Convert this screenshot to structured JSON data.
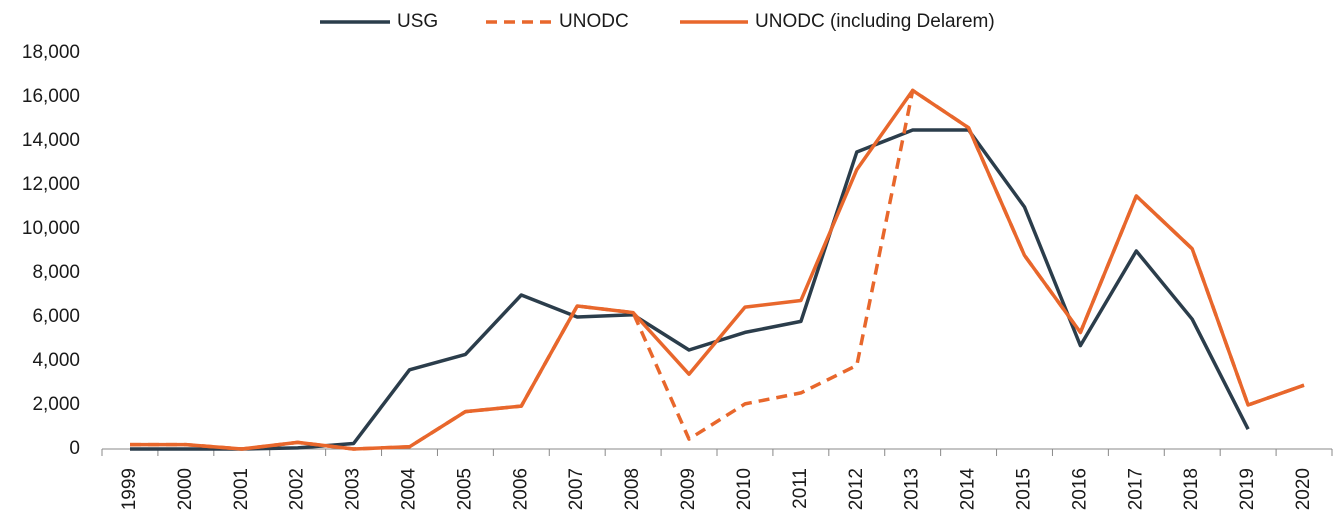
{
  "chart_data": {
    "type": "line",
    "categories": [
      "1999",
      "2000",
      "2001",
      "2002",
      "2003",
      "2004",
      "2005",
      "2006",
      "2007",
      "2008",
      "2009",
      "2010",
      "2011",
      "2012",
      "2013",
      "2014",
      "2015",
      "2016",
      "2017",
      "2018",
      "2019",
      "2020"
    ],
    "series": [
      {
        "name": "USG",
        "color": "#2b3d4b",
        "line_style": "solid",
        "values": [
          0,
          0,
          0,
          50,
          250,
          3600,
          4300,
          7000,
          6000,
          6100,
          4500,
          5300,
          5800,
          13500,
          14500,
          14500,
          11000,
          4700,
          9000,
          5900,
          900,
          null
        ]
      },
      {
        "name": "UNODC",
        "color": "#e8672c",
        "line_style": "dashed",
        "values": [
          200,
          200,
          0,
          300,
          0,
          100,
          1700,
          1950,
          6500,
          6200,
          450,
          2050,
          2550,
          3800,
          16300,
          14600,
          8800,
          5300,
          11500,
          9100,
          2000,
          2900
        ]
      },
      {
        "name": "UNODC (including Delarem)",
        "color": "#e8672c",
        "line_style": "solid",
        "values": [
          200,
          200,
          0,
          300,
          0,
          100,
          1700,
          1950,
          6500,
          6200,
          3400,
          6450,
          6750,
          12700,
          16300,
          14600,
          8800,
          5300,
          11500,
          9100,
          2000,
          2900
        ]
      }
    ],
    "ylim": [
      0,
      18000
    ],
    "yticks": [
      0,
      {
        "value": 2000,
        "label": "2,000"
      },
      {
        "value": 4000,
        "label": "4,000"
      },
      {
        "value": 6000,
        "label": "6,000"
      },
      {
        "value": 8000,
        "label": "8,000"
      },
      {
        "value": 10000,
        "label": "10,000"
      },
      {
        "value": 12000,
        "label": "12,000"
      },
      {
        "value": 14000,
        "label": "14,000"
      },
      {
        "value": 16000,
        "label": "16,000"
      },
      {
        "value": 18000,
        "label": "18,000"
      }
    ],
    "grid": false,
    "legend": "top"
  }
}
